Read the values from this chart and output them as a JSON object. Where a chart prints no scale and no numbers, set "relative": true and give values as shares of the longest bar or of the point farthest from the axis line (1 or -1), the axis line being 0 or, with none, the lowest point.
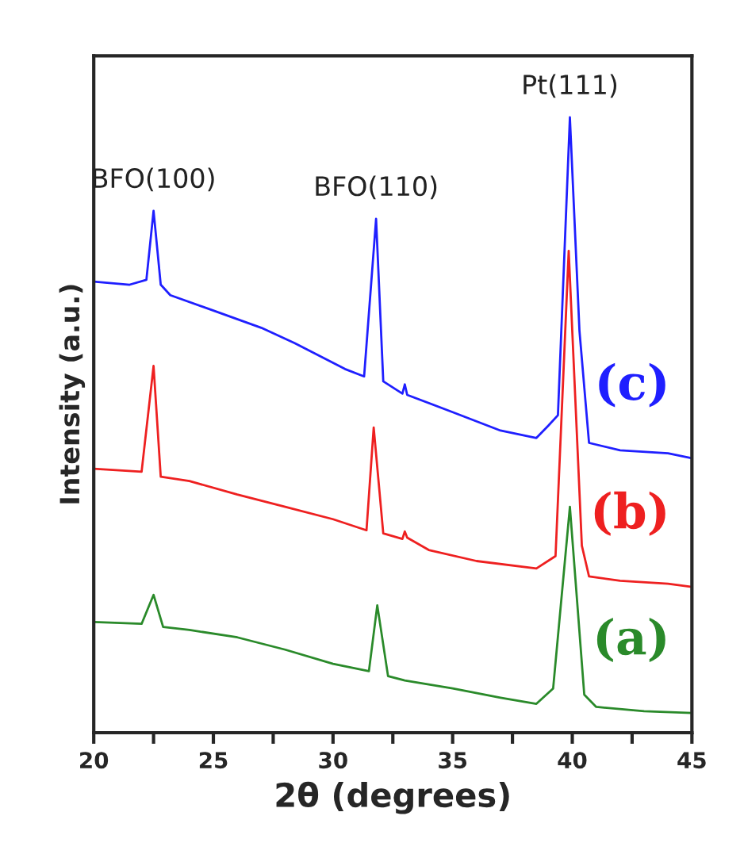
{
  "chart_data": {
    "type": "line",
    "relative": true,
    "xlabel": "2θ (degrees)",
    "ylabel": "Intensity (a.u.)",
    "xlim": [
      20,
      45
    ],
    "xticks": [
      20,
      {
        "value": 22.5,
        "label": null
      },
      25,
      {
        "value": 27.5,
        "label": null
      },
      30,
      {
        "value": 32.5,
        "label": null
      },
      35,
      {
        "value": 37.5,
        "label": null
      },
      40,
      {
        "value": 42.5,
        "label": null
      },
      45
    ],
    "grid": false,
    "legend": false,
    "marker": "none",
    "line_style": "solid",
    "annotations": [
      {
        "text": "BFO(100)",
        "x": 22.5,
        "y": 0.848
      },
      {
        "text": "BFO(110)",
        "x": 31.8,
        "y": 0.835
      },
      {
        "text": "Pt(111)",
        "x": 39.9,
        "y": 1.0
      }
    ],
    "series": [
      {
        "name": "(c)",
        "color": "#1f1fff",
        "x": [
          20,
          21.5,
          22.2,
          22.5,
          22.8,
          23.2,
          25,
          27,
          28.4,
          30.5,
          31.3,
          31.8,
          32.1,
          32.9,
          33.0,
          33.1,
          35,
          37,
          38.5,
          39,
          39.4,
          39.9,
          40.3,
          40.7,
          42,
          44,
          45
        ],
        "values": [
          0.733,
          0.728,
          0.736,
          0.848,
          0.728,
          0.711,
          0.686,
          0.658,
          0.633,
          0.591,
          0.579,
          0.835,
          0.571,
          0.551,
          0.566,
          0.549,
          0.521,
          0.491,
          0.479,
          0.499,
          0.516,
          1.0,
          0.653,
          0.471,
          0.459,
          0.454,
          0.446
        ]
      },
      {
        "name": "(b)",
        "color": "#ee2020",
        "x": [
          20,
          22.0,
          22.5,
          22.8,
          24,
          26,
          28,
          30,
          31.4,
          31.7,
          32.1,
          32.9,
          33.0,
          33.1,
          34,
          36,
          38.5,
          39.3,
          39.85,
          40.4,
          40.7,
          42,
          44,
          45
        ],
        "values": [
          0.429,
          0.424,
          0.596,
          0.416,
          0.409,
          0.387,
          0.367,
          0.347,
          0.329,
          0.496,
          0.324,
          0.315,
          0.327,
          0.317,
          0.297,
          0.279,
          0.267,
          0.287,
          0.783,
          0.304,
          0.254,
          0.247,
          0.242,
          0.237
        ]
      },
      {
        "name": "(a)",
        "color": "#2a8a2a",
        "x": [
          20,
          22.0,
          22.5,
          22.9,
          24,
          26,
          28,
          30,
          31.5,
          31.85,
          32.3,
          33,
          35,
          37,
          38.5,
          39.2,
          39.9,
          40.5,
          41,
          43,
          45
        ],
        "values": [
          0.18,
          0.177,
          0.224,
          0.172,
          0.167,
          0.155,
          0.135,
          0.112,
          0.1,
          0.207,
          0.092,
          0.085,
          0.072,
          0.057,
          0.047,
          0.072,
          0.367,
          0.062,
          0.042,
          0.035,
          0.032
        ]
      }
    ]
  }
}
